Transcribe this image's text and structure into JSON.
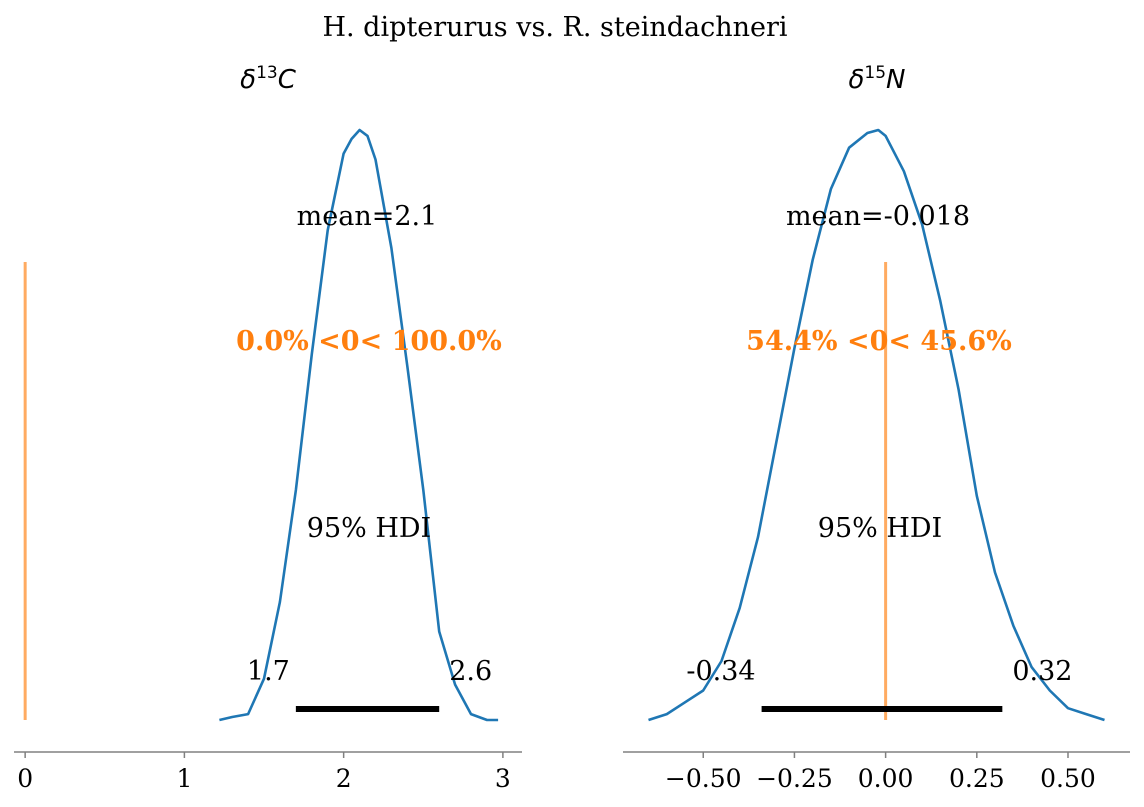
{
  "suptitle": "H. dipterurus vs. R. steindachneri",
  "chart_data": [
    {
      "type": "area",
      "title_symbol": "δ",
      "title_sup": "13",
      "title_var": "C",
      "mean_label": "mean=2.1",
      "ref_label": "0.0% <0< 100.0%",
      "hdi_label": "95% HDI",
      "hdi_low": 1.7,
      "hdi_high": 2.6,
      "hdi_low_label": "1.7",
      "hdi_high_label": "2.6",
      "ref_val": 0,
      "xlim": [
        -0.07,
        3.12
      ],
      "xticks": [
        0,
        1,
        2,
        3
      ],
      "xtick_labels": [
        "0",
        "1",
        "2",
        "3"
      ],
      "density": {
        "x": [
          1.22,
          1.3,
          1.4,
          1.5,
          1.6,
          1.7,
          1.8,
          1.9,
          2.0,
          2.05,
          2.1,
          2.15,
          2.2,
          2.3,
          2.4,
          2.5,
          2.6,
          2.7,
          2.8,
          2.9,
          2.97
        ],
        "y": [
          0.0,
          0.005,
          0.01,
          0.07,
          0.2,
          0.39,
          0.62,
          0.83,
          0.96,
          0.985,
          1.0,
          0.99,
          0.95,
          0.8,
          0.6,
          0.39,
          0.15,
          0.06,
          0.01,
          0.0,
          0.0
        ]
      },
      "colors": {
        "kde": "#1f77b4",
        "ref": "#ff7f0e",
        "hdi": "#000000"
      }
    },
    {
      "type": "area",
      "title_symbol": "δ",
      "title_sup": "15",
      "title_var": "N",
      "mean_label": "mean=-0.018",
      "ref_label": "54.4% <0< 45.6%",
      "hdi_label": "95% HDI",
      "hdi_low": -0.34,
      "hdi_high": 0.32,
      "hdi_low_label": "-0.34",
      "hdi_high_label": "0.32",
      "ref_val": 0,
      "xlim": [
        -0.72,
        0.67
      ],
      "xticks": [
        -0.5,
        -0.25,
        0.0,
        0.25,
        0.5
      ],
      "xtick_labels": [
        "−0.50",
        "−0.25",
        "0.00",
        "0.25",
        "0.50"
      ],
      "density": {
        "x": [
          -0.65,
          -0.6,
          -0.55,
          -0.5,
          -0.45,
          -0.4,
          -0.35,
          -0.3,
          -0.25,
          -0.2,
          -0.15,
          -0.1,
          -0.05,
          -0.02,
          0.0,
          0.05,
          0.1,
          0.15,
          0.2,
          0.25,
          0.3,
          0.35,
          0.4,
          0.45,
          0.5,
          0.55,
          0.6
        ],
        "y": [
          0.0,
          0.01,
          0.03,
          0.05,
          0.1,
          0.19,
          0.31,
          0.47,
          0.63,
          0.78,
          0.9,
          0.97,
          0.995,
          1.0,
          0.99,
          0.93,
          0.84,
          0.71,
          0.56,
          0.38,
          0.25,
          0.16,
          0.09,
          0.05,
          0.02,
          0.01,
          0.0
        ]
      },
      "colors": {
        "kde": "#1f77b4",
        "ref": "#ff7f0e",
        "hdi": "#000000"
      }
    }
  ]
}
